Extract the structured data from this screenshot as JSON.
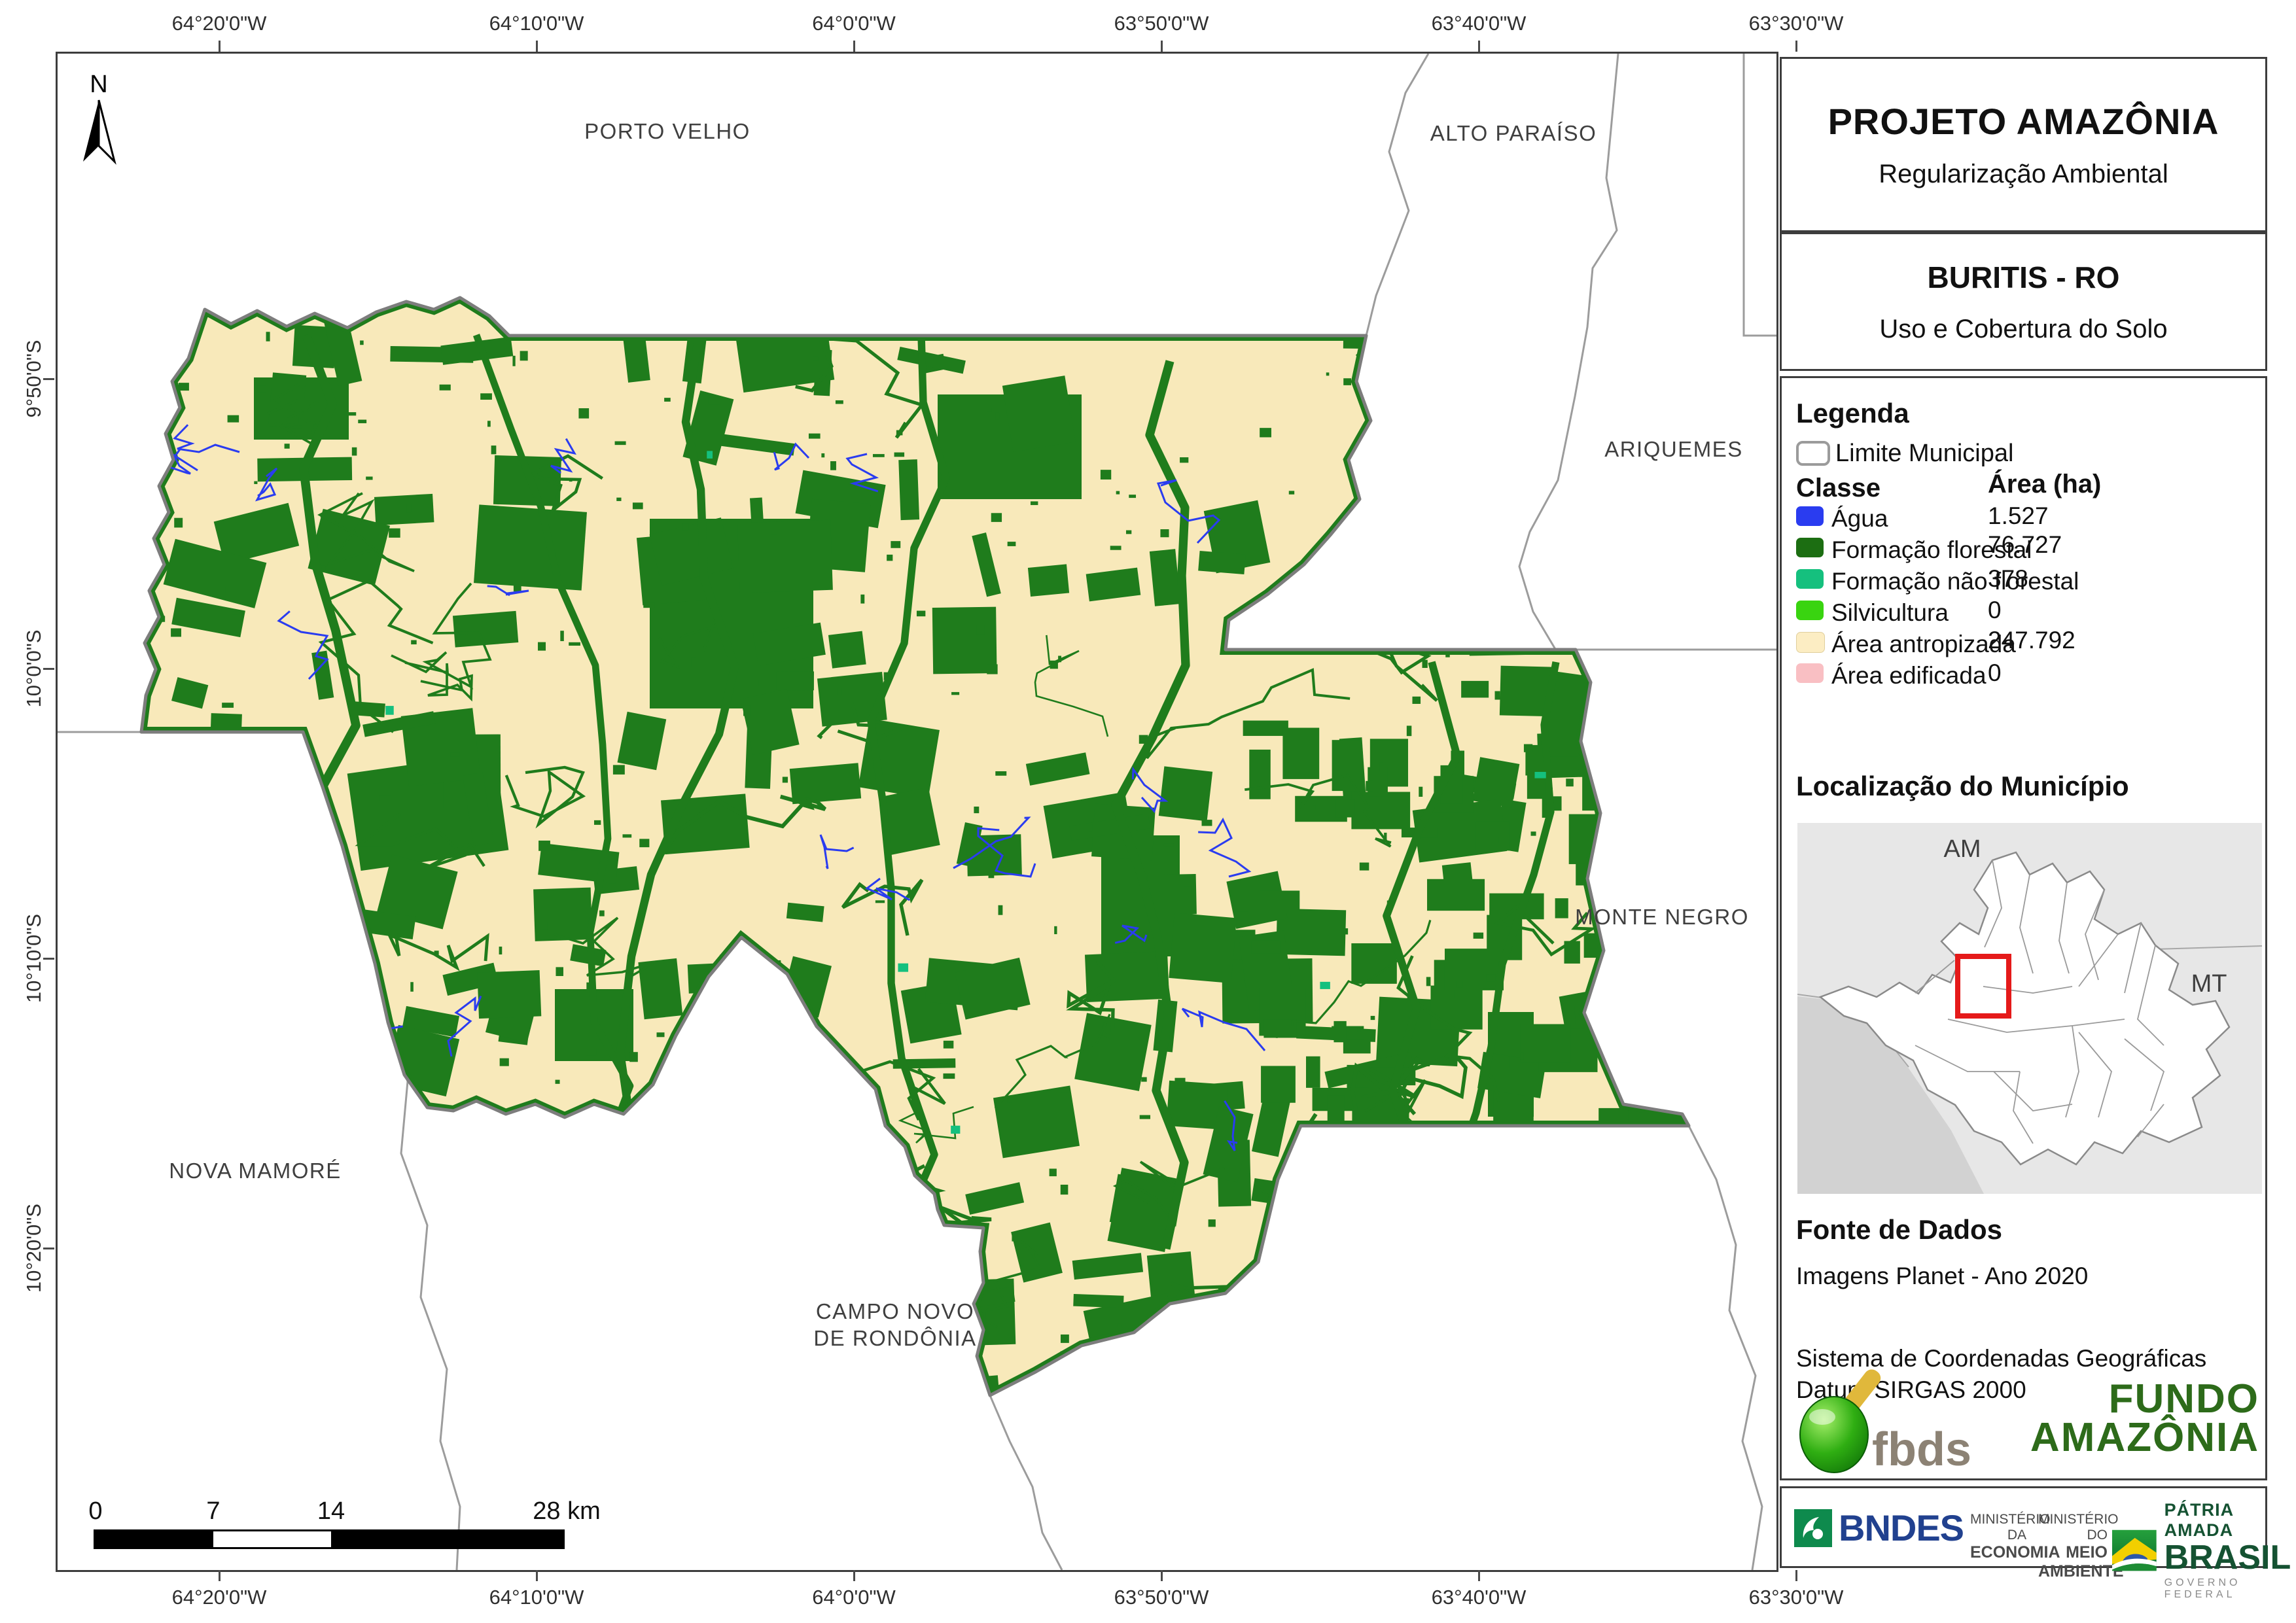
{
  "panel": {
    "title": "PROJETO AMAZÔNIA",
    "subtitle": "Regularização Ambiental",
    "municipality": "BURITIS - RO",
    "map_theme": "Uso e Cobertura do Solo",
    "legend": {
      "heading": "Legenda",
      "limite_label": "Limite Municipal",
      "class_header": "Classe",
      "area_header": "Área (ha)",
      "items": [
        {
          "label": "Água",
          "area": "1.527",
          "color": "#2a3cf0"
        },
        {
          "label": "Formação florestal",
          "area": "76.727",
          "color": "#1c6e12"
        },
        {
          "label": "Formação não florestal",
          "area": "378",
          "color": "#15c07e"
        },
        {
          "label": "Silvicultura",
          "area": "0",
          "color": "#39d410"
        },
        {
          "label": "Área antropizada",
          "area": "247.792",
          "color": "#fcedc3"
        },
        {
          "label": "Área edificada",
          "area": "0",
          "color": "#f9bfc3"
        }
      ]
    },
    "location": {
      "heading": "Localização do Município",
      "am_label": "AM",
      "mt_label": "MT"
    },
    "source": {
      "heading": "Fonte de Dados",
      "line1": "Imagens Planet - Ano 2020",
      "line2": "Sistema de Coordenadas Geográficas",
      "line3": "Datum SIRGAS 2000"
    },
    "logos": {
      "fbds": "fbds",
      "fundo_line1": "FUNDO",
      "fundo_line2": "AMAZÔNIA",
      "bndes": "BNDES",
      "min_economia_1": "MINISTÉRIO DA",
      "min_economia_2": "ECONOMIA",
      "min_ambiente_1": "MINISTÉRIO DO",
      "min_ambiente_2": "MEIO AMBIENTE",
      "brasil_top": "PÁTRIA AMADA",
      "brasil_main": "BRASIL",
      "brasil_sub": "GOVERNO FEDERAL"
    }
  },
  "map": {
    "north_label": "N",
    "labels": {
      "porto_velho": "PORTO VELHO",
      "alto_paraiso": "ALTO PARAÍSO",
      "ariquemes": "ARIQUEMES",
      "monte_negro": "MONTE NEGRO",
      "nova_mamore": "NOVA MAMORÉ",
      "campo_novo_l1": "CAMPO NOVO",
      "campo_novo_l2": "DE RONDÔNIA"
    },
    "axis": {
      "lon": [
        "64°20'0\"W",
        "64°10'0\"W",
        "64°0'0\"W",
        "63°50'0\"W",
        "63°40'0\"W",
        "63°30'0\"W"
      ],
      "lat": [
        "9°50'0\"S",
        "10°0'0\"S",
        "10°10'0\"S",
        "10°20'0\"S"
      ]
    },
    "scalebar": {
      "t0": "0",
      "t7": "7",
      "t14": "14",
      "t28": "28 km"
    }
  },
  "colors": {
    "water": "#2a3cf0",
    "forest_map": "#1f7c1c",
    "non_forest": "#15c07e",
    "anthropized": "#f8e9ba",
    "boundary": "#7d7d7d",
    "neighbor_line": "#9c9c9c"
  }
}
